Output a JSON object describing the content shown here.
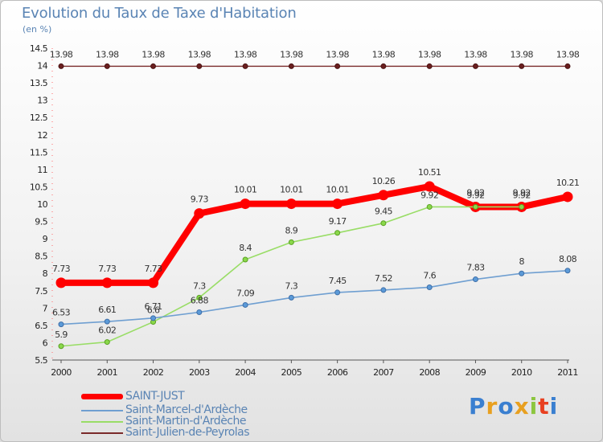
{
  "title": "Evolution du Taux de Taxe d'Habitation",
  "subtitle": "(en %)",
  "logo": {
    "text": "Proxiti"
  },
  "colors": {
    "saint_just": "#ff0000",
    "saint_marcel": "#6f9fd1",
    "saint_martin": "#99dd66",
    "saint_julien": "#7a2a2a",
    "title": "#5a84b4"
  },
  "chart_data": {
    "type": "line",
    "title": "Evolution du Taux de Taxe d'Habitation",
    "ylabel": "(en %)",
    "xlabel": "",
    "ylim": [
      5.5,
      14.5
    ],
    "yticks": [
      "5.5",
      "6",
      "6.5",
      "7",
      "7.5",
      "8",
      "8.5",
      "9",
      "9.5",
      "10",
      "10.5",
      "11",
      "11.5",
      "12",
      "12.5",
      "13",
      "13.5",
      "14",
      "14.5"
    ],
    "x": [
      "2000",
      "2001",
      "2002",
      "2003",
      "2004",
      "2005",
      "2006",
      "2007",
      "2008",
      "2009",
      "2010",
      "2011"
    ],
    "grid": false,
    "legend_position": "bottom-left",
    "series": [
      {
        "name": "SAINT-JUST",
        "values": [
          7.73,
          7.73,
          7.73,
          9.73,
          10.01,
          10.01,
          10.01,
          10.26,
          10.51,
          9.92,
          9.92,
          10.21
        ],
        "labels": [
          "7.73",
          "7.73",
          "7.73",
          "9.73",
          "10.01",
          "10.01",
          "10.01",
          "10.26",
          "10.51",
          "9.92",
          "9.92",
          "10.21"
        ]
      },
      {
        "name": "Saint-Marcel-d'Ardèche",
        "values": [
          6.53,
          6.61,
          6.71,
          6.88,
          7.09,
          7.3,
          7.45,
          7.52,
          7.6,
          7.83,
          8,
          8.08
        ],
        "labels": [
          "6.53",
          "6.61",
          "6.71",
          "6.88",
          "7.09",
          "7.3",
          "7.45",
          "7.52",
          "7.6",
          "7.83",
          "8",
          "8.08"
        ]
      },
      {
        "name": "Saint-Martin-d'Ardèche",
        "values": [
          5.9,
          6.02,
          6.6,
          7.3,
          8.4,
          8.9,
          9.17,
          9.45,
          9.92,
          9.92,
          9.92,
          null
        ],
        "labels": [
          "5.9",
          "6.02",
          "6.6",
          "7.3",
          "8.4",
          "8.9",
          "9.17",
          "9.45",
          "9.92",
          "9.92",
          "9.92",
          ""
        ]
      },
      {
        "name": "Saint-Julien-de-Peyrolas",
        "values": [
          13.98,
          13.98,
          13.98,
          13.98,
          13.98,
          13.98,
          13.98,
          13.98,
          13.98,
          13.98,
          13.98,
          13.98
        ],
        "labels": [
          "13.98",
          "13.98",
          "13.98",
          "13.98",
          "13.98",
          "13.98",
          "13.98",
          "13.98",
          "13.98",
          "13.98",
          "13.98",
          "13.98"
        ]
      }
    ]
  }
}
